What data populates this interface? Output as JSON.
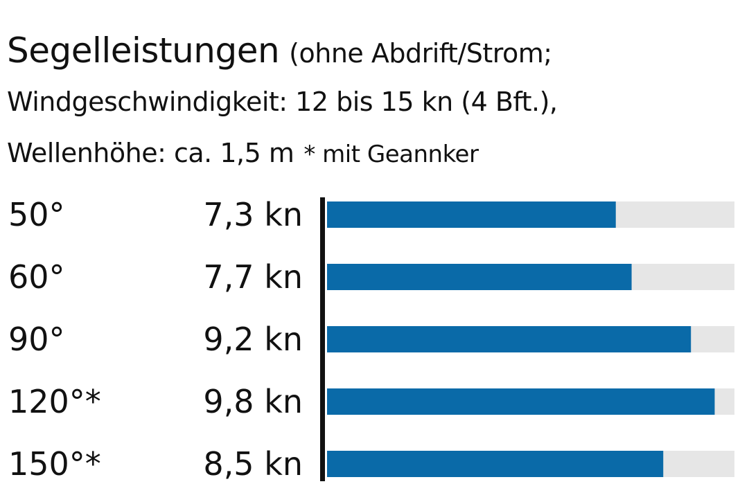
{
  "title": {
    "main": "Segelleistungen",
    "line1_suffix": "(ohne Abdrift/Strom;",
    "line2": "Windgeschwindigkeit: 12 bis 15 kn (4 Bft.),",
    "line3_main": "Wellenhöhe: ca. 1,5 m",
    "line3_note": "* mit Geannker"
  },
  "colors": {
    "bar": "#0a6aa8",
    "track": "#e6e6e6",
    "axis": "#111111"
  },
  "chart_data": {
    "type": "bar",
    "orientation": "horizontal",
    "categories": [
      "50°",
      "60°",
      "90°",
      "120°*",
      "150°*"
    ],
    "values": [
      7.3,
      7.7,
      9.2,
      9.8,
      8.5
    ],
    "value_labels": [
      "7,3 kn",
      "7,7 kn",
      "9,2 kn",
      "9,8 kn",
      "8,5 kn"
    ],
    "unit": "kn",
    "xlim": [
      0,
      10.3
    ],
    "grid": false,
    "legend": "none",
    "title": "Segelleistungen (ohne Abdrift/Strom; Windgeschwindigkeit: 12 bis 15 kn (4 Bft.), Wellenhöhe: ca. 1,5 m * mit Geannker"
  }
}
